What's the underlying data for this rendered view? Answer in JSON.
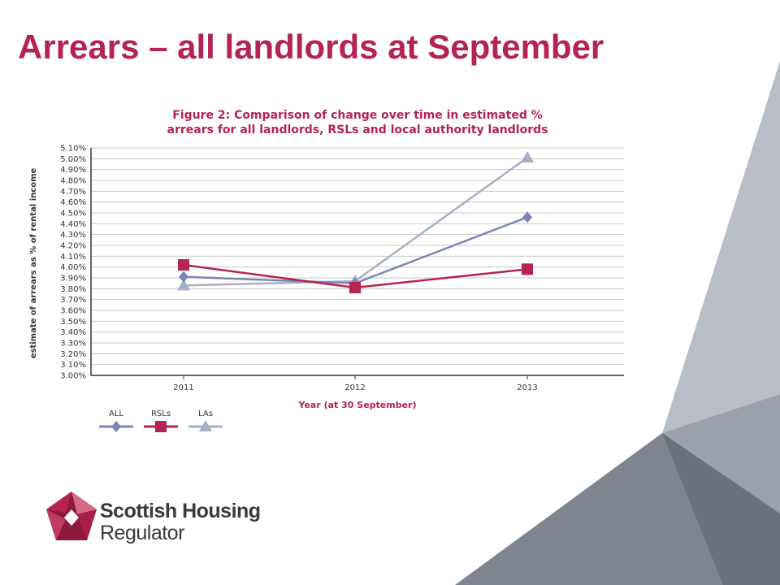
{
  "slide": {
    "title": "Arrears – all landlords at September",
    "title_color": "#b5234f"
  },
  "logo": {
    "name_line1": "Scottish Housing",
    "name_line2": "Regulator",
    "colors": [
      "#b5234f",
      "#8c1a3a",
      "#d46a86"
    ]
  },
  "decoration": {
    "colors": [
      "#b9bec6",
      "#9ba1aa",
      "#7f858e",
      "#6b717a"
    ]
  },
  "chart_data": {
    "type": "line",
    "title_line1": "Figure 2: Comparison of change over time in estimated %",
    "title_line2": "arrears for all landlords, RSLs and local authority landlords",
    "xlabel": "Year (at 30 September)",
    "ylabel": "estimate of arrears as % of rental income",
    "categories": [
      "2011",
      "2012",
      "2013"
    ],
    "ylim": [
      3.0,
      5.1
    ],
    "yticks": [
      "3.00%",
      "3.10%",
      "3.20%",
      "3.30%",
      "3.40%",
      "3.50%",
      "3.60%",
      "3.70%",
      "3.80%",
      "3.90%",
      "4.00%",
      "4.10%",
      "4.20%",
      "4.30%",
      "4.40%",
      "4.50%",
      "4.60%",
      "4.70%",
      "4.80%",
      "4.90%",
      "5.00%",
      "5.10%"
    ],
    "grid": true,
    "legend_position": "bottom-left",
    "series": [
      {
        "name": "ALL",
        "values": [
          3.91,
          3.85,
          4.46
        ],
        "color": "#7b86b5",
        "marker": "diamond"
      },
      {
        "name": "RSLs",
        "values": [
          4.02,
          3.81,
          3.98
        ],
        "color": "#b5234f",
        "marker": "square"
      },
      {
        "name": "LAs",
        "values": [
          3.83,
          3.87,
          5.01
        ],
        "color": "#a5b0c6",
        "marker": "triangle"
      }
    ]
  }
}
